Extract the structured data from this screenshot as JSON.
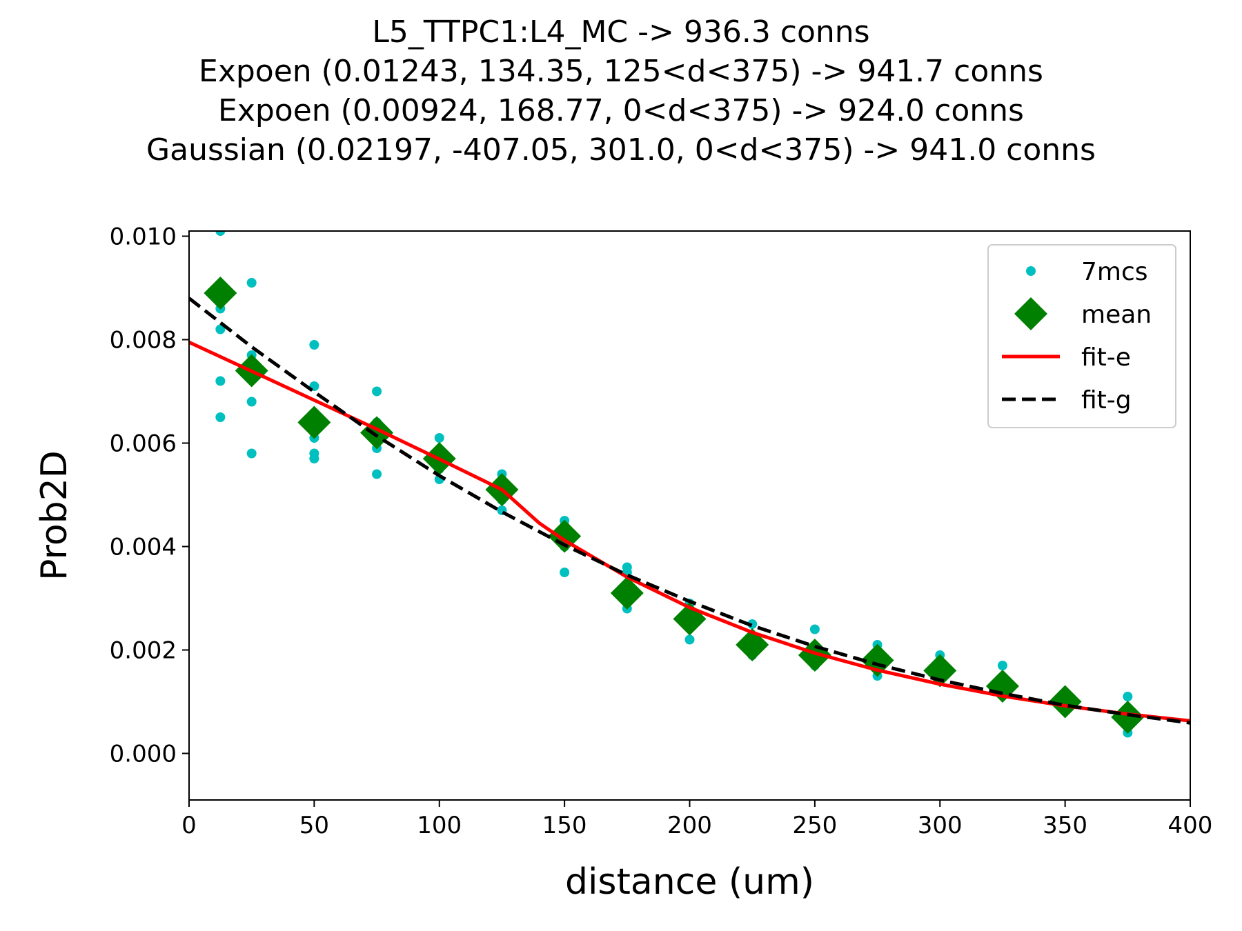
{
  "chart_data": {
    "type": "scatter",
    "title_lines": [
      "L5_TTPC1:L4_MC -> 936.3 conns",
      "Expoen (0.01243, 134.35, 125<d<375) -> 941.7 conns",
      "Expoen (0.00924, 168.77, 0<d<375) -> 924.0 conns",
      "Gaussian (0.02197, -407.05, 301.0, 0<d<375) -> 941.0 conns"
    ],
    "xlabel": "distance (um)",
    "ylabel": "Prob2D",
    "xlim": [
      0,
      400
    ],
    "ylim": [
      -0.0009,
      0.0101
    ],
    "x_ticks": [
      0,
      50,
      100,
      150,
      200,
      250,
      300,
      350,
      400
    ],
    "y_ticks": [
      0.0,
      0.002,
      0.004,
      0.006,
      0.008,
      0.01
    ],
    "y_tick_labels": [
      "0.000",
      "0.002",
      "0.004",
      "0.006",
      "0.008",
      "0.010"
    ],
    "grid": false,
    "legend_position": "top-right",
    "series": [
      {
        "name": "7mcs",
        "kind": "points",
        "color": "#00bfbf",
        "points": [
          [
            12.5,
            0.0101
          ],
          [
            12.5,
            0.0086
          ],
          [
            12.5,
            0.0082
          ],
          [
            12.5,
            0.0072
          ],
          [
            12.5,
            0.0065
          ],
          [
            25,
            0.0091
          ],
          [
            25,
            0.0077
          ],
          [
            25,
            0.0073
          ],
          [
            25,
            0.0068
          ],
          [
            25,
            0.0058
          ],
          [
            50,
            0.0079
          ],
          [
            50,
            0.0071
          ],
          [
            50,
            0.0061
          ],
          [
            50,
            0.0058
          ],
          [
            50,
            0.0057
          ],
          [
            75,
            0.007
          ],
          [
            75,
            0.0064
          ],
          [
            75,
            0.0062
          ],
          [
            75,
            0.0059
          ],
          [
            75,
            0.0054
          ],
          [
            100,
            0.0061
          ],
          [
            100,
            0.0058
          ],
          [
            100,
            0.0055
          ],
          [
            100,
            0.0053
          ],
          [
            125,
            0.0054
          ],
          [
            125,
            0.0051
          ],
          [
            125,
            0.0049
          ],
          [
            125,
            0.0047
          ],
          [
            150,
            0.0045
          ],
          [
            150,
            0.0044
          ],
          [
            150,
            0.004
          ],
          [
            150,
            0.0035
          ],
          [
            175,
            0.0036
          ],
          [
            175,
            0.0035
          ],
          [
            175,
            0.003
          ],
          [
            175,
            0.0028
          ],
          [
            200,
            0.0029
          ],
          [
            200,
            0.0026
          ],
          [
            200,
            0.0022
          ],
          [
            225,
            0.0025
          ],
          [
            225,
            0.0022
          ],
          [
            225,
            0.0019
          ],
          [
            250,
            0.0024
          ],
          [
            250,
            0.002
          ],
          [
            250,
            0.0017
          ],
          [
            275,
            0.0021
          ],
          [
            275,
            0.0018
          ],
          [
            275,
            0.0015
          ],
          [
            300,
            0.0019
          ],
          [
            300,
            0.0016
          ],
          [
            300,
            0.0014
          ],
          [
            325,
            0.0017
          ],
          [
            325,
            0.0013
          ],
          [
            325,
            0.0012
          ],
          [
            350,
            0.001
          ],
          [
            350,
            0.0009
          ],
          [
            375,
            0.0011
          ],
          [
            375,
            0.0007
          ],
          [
            375,
            0.0004
          ]
        ]
      },
      {
        "name": "mean",
        "kind": "diamonds",
        "color": "#008000",
        "points": [
          [
            12.5,
            0.0089
          ],
          [
            25,
            0.0074
          ],
          [
            50,
            0.0064
          ],
          [
            75,
            0.0062
          ],
          [
            100,
            0.0057
          ],
          [
            125,
            0.0051
          ],
          [
            150,
            0.0042
          ],
          [
            175,
            0.0031
          ],
          [
            200,
            0.0026
          ],
          [
            225,
            0.0021
          ],
          [
            250,
            0.0019
          ],
          [
            275,
            0.0018
          ],
          [
            300,
            0.0016
          ],
          [
            325,
            0.0013
          ],
          [
            350,
            0.001
          ],
          [
            375,
            0.0007
          ]
        ]
      },
      {
        "name": "fit-e",
        "kind": "line",
        "color": "#ff0000",
        "dashed": false,
        "points": [
          [
            0,
            0.00795
          ],
          [
            25,
            0.00739
          ],
          [
            50,
            0.00683
          ],
          [
            75,
            0.00627
          ],
          [
            100,
            0.00569
          ],
          [
            125,
            0.0051
          ],
          [
            140,
            0.00445
          ],
          [
            150,
            0.00412
          ],
          [
            175,
            0.00341
          ],
          [
            200,
            0.00282
          ],
          [
            225,
            0.00234
          ],
          [
            250,
            0.00194
          ],
          [
            275,
            0.00161
          ],
          [
            300,
            0.00134
          ],
          [
            325,
            0.00111
          ],
          [
            350,
            0.00092
          ],
          [
            375,
            0.00076
          ],
          [
            400,
            0.00063
          ]
        ]
      },
      {
        "name": "fit-g",
        "kind": "line",
        "color": "#000000",
        "dashed": true,
        "points": [
          [
            0,
            0.0088
          ],
          [
            25,
            0.00786
          ],
          [
            50,
            0.00699
          ],
          [
            75,
            0.00614
          ],
          [
            100,
            0.00537
          ],
          [
            125,
            0.00467
          ],
          [
            150,
            0.00403
          ],
          [
            175,
            0.00345
          ],
          [
            200,
            0.00294
          ],
          [
            225,
            0.00247
          ],
          [
            250,
            0.00207
          ],
          [
            275,
            0.00172
          ],
          [
            300,
            0.00142
          ],
          [
            325,
            0.00116
          ],
          [
            350,
            0.00093
          ],
          [
            375,
            0.00075
          ],
          [
            400,
            0.00059
          ]
        ]
      }
    ]
  }
}
